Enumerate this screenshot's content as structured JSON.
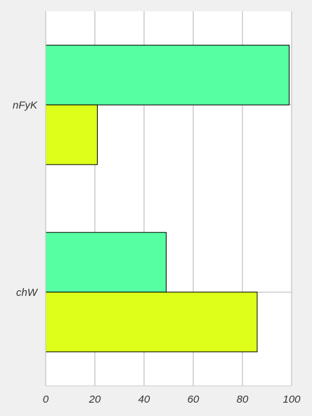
{
  "chart_data": {
    "type": "bar",
    "orientation": "horizontal",
    "categories": [
      "nFyK",
      "chW"
    ],
    "series": [
      {
        "color": "#55ffa2",
        "values": [
          99,
          49
        ]
      },
      {
        "color": "#ddff1a",
        "values": [
          21,
          86
        ]
      }
    ],
    "title": "",
    "xlabel": "",
    "ylabel": "",
    "xlim": [
      0,
      100
    ],
    "xticks": [
      0,
      20,
      40,
      60,
      80,
      100
    ],
    "grid": "vertical",
    "legend": "none",
    "background": "#f0f0f0",
    "plot_background": "#ffffff"
  }
}
